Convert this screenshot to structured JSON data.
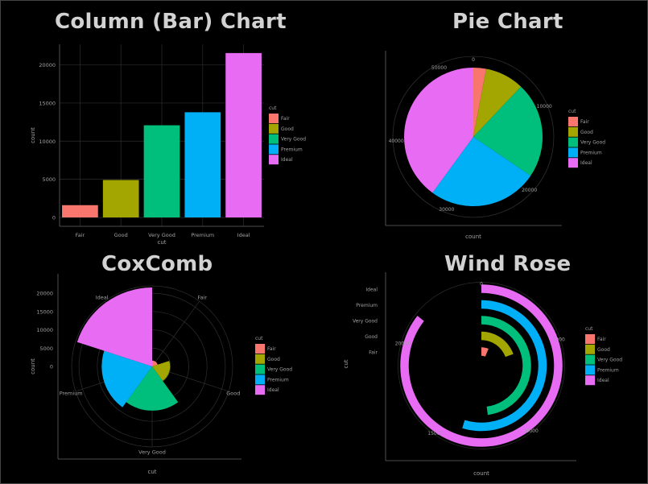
{
  "chart_data": [
    {
      "type": "bar",
      "title": "Column (Bar) Chart",
      "xlabel": "cut",
      "ylabel": "count",
      "categories": [
        "Fair",
        "Good",
        "Very Good",
        "Premium",
        "Ideal"
      ],
      "values": [
        1610,
        4906,
        12082,
        13791,
        21551
      ],
      "yticks": [
        "0",
        "5000",
        "10000",
        "15000",
        "20000"
      ],
      "ylim": [
        0,
        22700
      ],
      "legend": {
        "title": "cut",
        "placement": "right"
      },
      "grid": true
    },
    {
      "type": "pie",
      "title": "Pie Chart",
      "xlabel": "count",
      "categories": [
        "Fair",
        "Good",
        "Very Good",
        "Premium",
        "Ideal"
      ],
      "values": [
        1610,
        4906,
        12082,
        13791,
        21551
      ],
      "ticks": [
        "0",
        "10000",
        "20000",
        "30000",
        "40000",
        "50000"
      ],
      "legend": {
        "title": "cut",
        "placement": "right"
      }
    },
    {
      "type": "area",
      "title": "CoxComb",
      "xlabel": "cut",
      "ylabel": "count",
      "categories": [
        "Fair",
        "Good",
        "Very Good",
        "Premium",
        "Ideal"
      ],
      "values": [
        1610,
        4906,
        12082,
        13791,
        21551
      ],
      "yticks": [
        "0",
        "5000",
        "10000",
        "15000",
        "20000"
      ],
      "legend": {
        "title": "cut",
        "placement": "right"
      }
    },
    {
      "type": "bar",
      "title": "Wind Rose",
      "xlabel": "count",
      "ylabel": "cut",
      "categories": [
        "Fair",
        "Good",
        "Very Good",
        "Premium",
        "Ideal"
      ],
      "values": [
        1610,
        4906,
        12082,
        13791,
        21551
      ],
      "ticks": [
        "0",
        "5000",
        "10000",
        "15000",
        "20000"
      ],
      "legend": {
        "title": "cut",
        "placement": "right"
      }
    }
  ],
  "colors": {
    "Fair": "#f8766d",
    "Good": "#a3a500",
    "Very Good": "#00bf7d",
    "Premium": "#00b0f6",
    "Ideal": "#e76bf3"
  }
}
